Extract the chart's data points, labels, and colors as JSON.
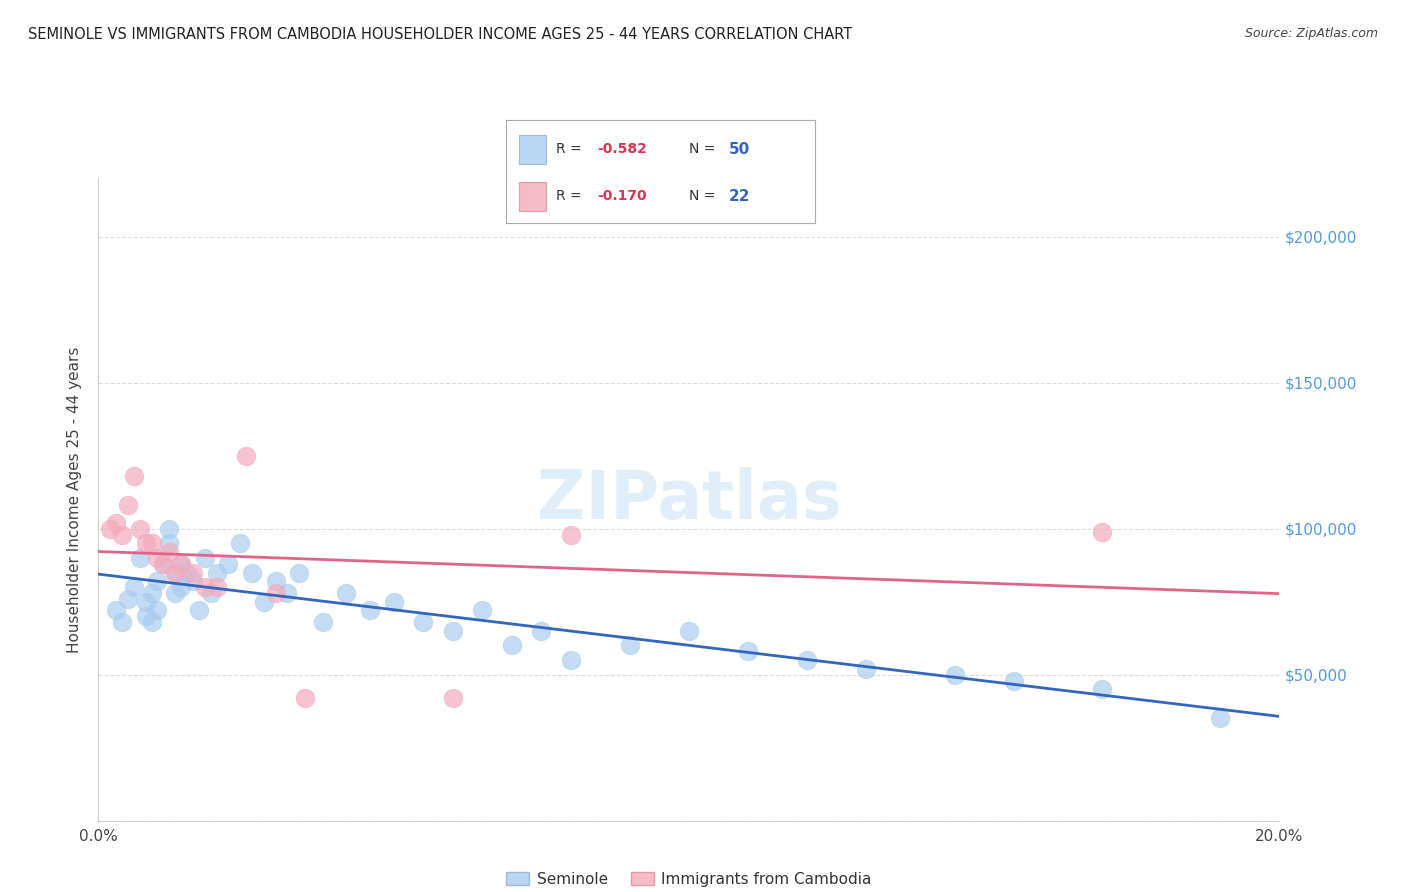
{
  "title": "SEMINOLE VS IMMIGRANTS FROM CAMBODIA HOUSEHOLDER INCOME AGES 25 - 44 YEARS CORRELATION CHART",
  "source": "Source: ZipAtlas.com",
  "ylabel": "Householder Income Ages 25 - 44 years",
  "xlim": [
    0.0,
    0.2
  ],
  "ylim": [
    0,
    220000
  ],
  "xticks": [
    0.0,
    0.05,
    0.1,
    0.15,
    0.2
  ],
  "xticklabels": [
    "0.0%",
    "",
    "",
    "",
    "20.0%"
  ],
  "yticks": [
    0,
    50000,
    100000,
    150000,
    200000
  ],
  "yticklabels": [
    "",
    "$50,000",
    "$100,000",
    "$150,000",
    "$200,000"
  ],
  "ytick_color": "#5599dd",
  "background_color": "#ffffff",
  "grid_color": "#dddddd",
  "seminole_color": "#aaccee",
  "cambodia_color": "#f4aabc",
  "line_seminole": "#3366bb",
  "line_cambodia": "#dd6688",
  "seminole_R": "-0.582",
  "seminole_N": "50",
  "cambodia_R": "-0.170",
  "cambodia_N": "22",
  "seminole_x": [
    0.003,
    0.004,
    0.005,
    0.006,
    0.007,
    0.008,
    0.008,
    0.009,
    0.009,
    0.01,
    0.01,
    0.011,
    0.012,
    0.012,
    0.013,
    0.013,
    0.014,
    0.014,
    0.015,
    0.016,
    0.017,
    0.018,
    0.019,
    0.02,
    0.022,
    0.024,
    0.026,
    0.028,
    0.03,
    0.032,
    0.034,
    0.038,
    0.042,
    0.046,
    0.05,
    0.055,
    0.06,
    0.065,
    0.07,
    0.075,
    0.08,
    0.09,
    0.1,
    0.11,
    0.12,
    0.13,
    0.145,
    0.155,
    0.17,
    0.19
  ],
  "seminole_y": [
    72000,
    68000,
    76000,
    80000,
    90000,
    75000,
    70000,
    78000,
    68000,
    82000,
    72000,
    88000,
    95000,
    100000,
    85000,
    78000,
    88000,
    80000,
    85000,
    82000,
    72000,
    90000,
    78000,
    85000,
    88000,
    95000,
    85000,
    75000,
    82000,
    78000,
    85000,
    68000,
    78000,
    72000,
    75000,
    68000,
    65000,
    72000,
    60000,
    65000,
    55000,
    60000,
    65000,
    58000,
    55000,
    52000,
    50000,
    48000,
    45000,
    35000
  ],
  "cambodia_x": [
    0.002,
    0.003,
    0.004,
    0.005,
    0.006,
    0.007,
    0.008,
    0.009,
    0.01,
    0.011,
    0.012,
    0.013,
    0.014,
    0.016,
    0.018,
    0.02,
    0.025,
    0.03,
    0.035,
    0.06,
    0.08,
    0.17
  ],
  "cambodia_y": [
    100000,
    102000,
    98000,
    108000,
    118000,
    100000,
    95000,
    95000,
    90000,
    88000,
    92000,
    85000,
    88000,
    85000,
    80000,
    80000,
    125000,
    78000,
    42000,
    42000,
    98000,
    99000
  ]
}
